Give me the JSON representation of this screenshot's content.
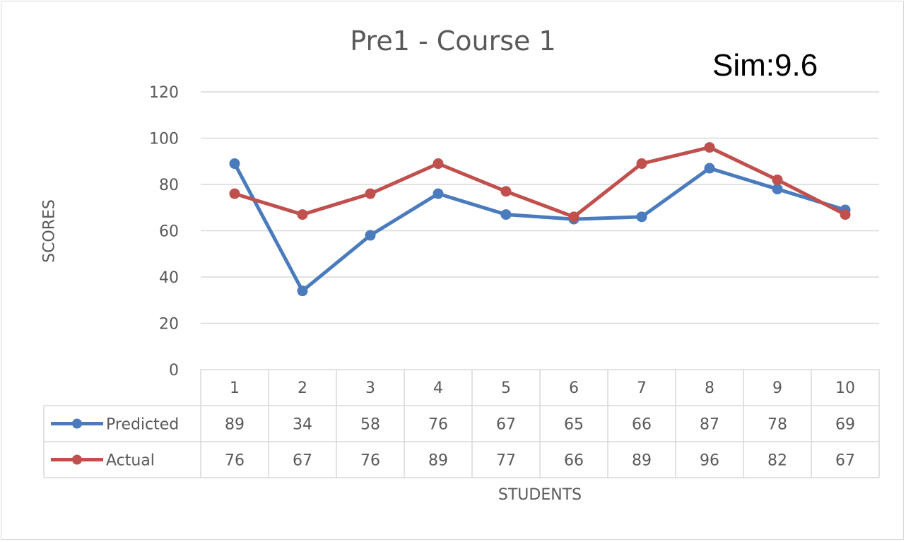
{
  "chart_data": {
    "type": "line",
    "title": "Pre1 - Course 1",
    "annotation": "Sim:9.6",
    "xlabel": "STUDENTS",
    "ylabel": "SCORES",
    "categories": [
      "1",
      "2",
      "3",
      "4",
      "5",
      "6",
      "7",
      "8",
      "9",
      "10"
    ],
    "ylim": [
      0,
      120
    ],
    "yticks": [
      0,
      20,
      40,
      60,
      80,
      100,
      120
    ],
    "grid": true,
    "legend": "data-table",
    "series": [
      {
        "name": "Predicted",
        "color": "#4a7bbd",
        "values": [
          89,
          34,
          58,
          76,
          67,
          65,
          66,
          87,
          78,
          69
        ]
      },
      {
        "name": "Actual",
        "color": "#c0504d",
        "values": [
          76,
          67,
          76,
          89,
          77,
          66,
          89,
          96,
          82,
          67
        ]
      }
    ]
  }
}
